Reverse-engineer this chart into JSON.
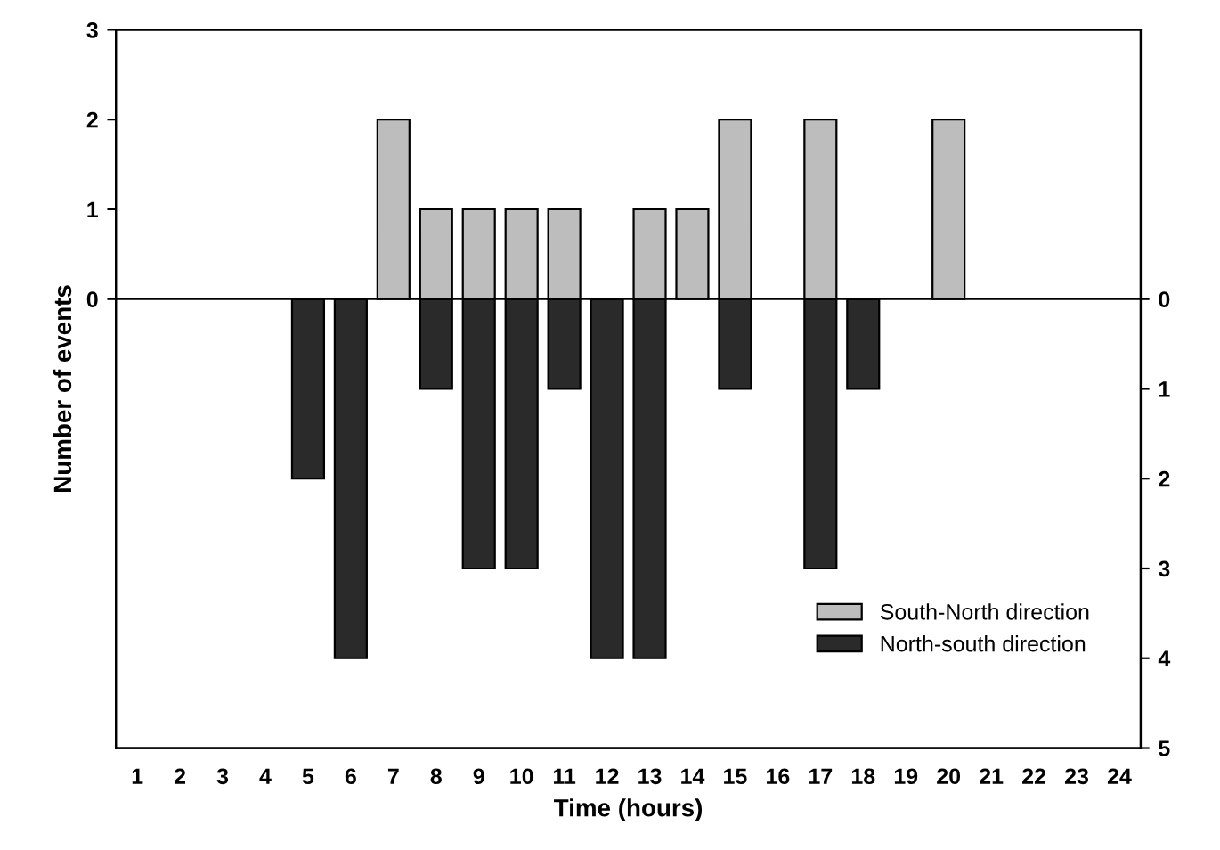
{
  "chart_data": {
    "type": "bar",
    "xlabel": "Time (hours)",
    "ylabel": "Number of events",
    "categories": [
      "1",
      "2",
      "3",
      "4",
      "5",
      "6",
      "7",
      "8",
      "9",
      "10",
      "11",
      "12",
      "13",
      "14",
      "15",
      "16",
      "17",
      "18",
      "19",
      "20",
      "21",
      "22",
      "23",
      "24"
    ],
    "series": [
      {
        "name": "South-North direction",
        "color": "#bdbdbd",
        "values": [
          null,
          null,
          null,
          null,
          null,
          null,
          2,
          1,
          1,
          1,
          1,
          null,
          1,
          1,
          2,
          null,
          2,
          null,
          null,
          2,
          null,
          null,
          null,
          null
        ]
      },
      {
        "name": "North-south direction",
        "color": "#2a2a2a",
        "values": [
          null,
          null,
          null,
          null,
          -2,
          -4,
          null,
          -1,
          -3,
          -3,
          -1,
          -4,
          -4,
          null,
          -1,
          null,
          -3,
          -1,
          null,
          null,
          null,
          null,
          null,
          null
        ]
      }
    ],
    "ylim": [
      -5,
      3
    ],
    "yticks": [
      0,
      1,
      2,
      3
    ],
    "y2lim": [
      -5,
      3
    ],
    "y2ticks": [
      {
        "value": 0,
        "label": "0"
      },
      {
        "value": -1,
        "label": "1"
      },
      {
        "value": -2,
        "label": "2"
      },
      {
        "value": -3,
        "label": "3"
      },
      {
        "value": -4,
        "label": "4"
      },
      {
        "value": -5,
        "label": "5"
      }
    ],
    "ref_lines": [
      {
        "axis": "y",
        "value": 0,
        "color": "#000000",
        "line_style": "solid"
      }
    ],
    "grid": false,
    "legend": "bottom right"
  }
}
